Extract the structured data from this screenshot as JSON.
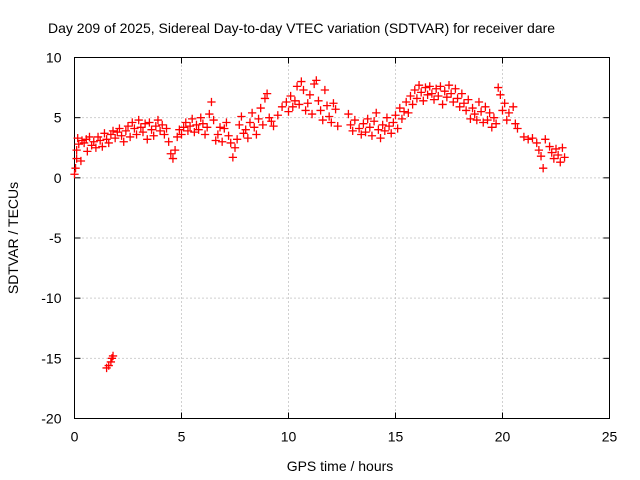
{
  "chart_data": {
    "type": "scatter",
    "title": "Day 209 of 2025, Sidereal Day-to-day VTEC variation (SDTVAR) for receiver dare",
    "xlabel": "GPS time / hours",
    "ylabel": "SDTVAR / TECUs",
    "xlim": [
      0,
      25
    ],
    "ylim": [
      -20,
      10
    ],
    "xticks": [
      0,
      5,
      10,
      15,
      20,
      25
    ],
    "yticks": [
      -20,
      -15,
      -10,
      -5,
      0,
      5,
      10
    ],
    "xtick_labels": [
      "0",
      "5",
      "10",
      "15",
      "20",
      "25"
    ],
    "ytick_labels": [
      "-20",
      "-15",
      "-10",
      "-5",
      "0",
      "5",
      "10"
    ],
    "grid": true,
    "marker": "+",
    "color": "#ff0000",
    "series": [
      {
        "name": "SDTVAR",
        "points": [
          [
            0.0,
            0.3
          ],
          [
            0.05,
            0.8
          ],
          [
            0.1,
            1.6
          ],
          [
            0.1,
            2.3
          ],
          [
            0.15,
            3.3
          ],
          [
            0.2,
            2.8
          ],
          [
            0.3,
            1.4
          ],
          [
            0.35,
            3.1
          ],
          [
            0.45,
            2.9
          ],
          [
            0.55,
            3.2
          ],
          [
            0.6,
            2.2
          ],
          [
            0.7,
            3.4
          ],
          [
            0.8,
            2.7
          ],
          [
            0.9,
            3.0
          ],
          [
            1.0,
            2.5
          ],
          [
            1.1,
            3.4
          ],
          [
            1.2,
            3.1
          ],
          [
            1.3,
            2.6
          ],
          [
            1.4,
            3.7
          ],
          [
            1.5,
            3.2
          ],
          [
            1.6,
            2.9
          ],
          [
            1.7,
            3.6
          ],
          [
            1.8,
            3.9
          ],
          [
            1.9,
            3.3
          ],
          [
            2.0,
            3.8
          ],
          [
            2.1,
            4.1
          ],
          [
            2.2,
            3.5
          ],
          [
            2.3,
            3.0
          ],
          [
            2.4,
            3.9
          ],
          [
            2.5,
            4.3
          ],
          [
            2.6,
            3.4
          ],
          [
            2.7,
            4.6
          ],
          [
            2.8,
            4.1
          ],
          [
            2.9,
            3.6
          ],
          [
            3.0,
            4.8
          ],
          [
            3.1,
            4.2
          ],
          [
            3.2,
            3.8
          ],
          [
            3.3,
            4.5
          ],
          [
            3.4,
            3.2
          ],
          [
            3.5,
            4.6
          ],
          [
            3.6,
            4.0
          ],
          [
            3.7,
            3.5
          ],
          [
            3.8,
            4.3
          ],
          [
            3.9,
            4.8
          ],
          [
            4.0,
            3.9
          ],
          [
            4.1,
            4.4
          ],
          [
            4.2,
            3.6
          ],
          [
            4.3,
            4.1
          ],
          [
            4.4,
            3.0
          ],
          [
            4.5,
            2.0
          ],
          [
            4.6,
            1.6
          ],
          [
            4.7,
            2.3
          ],
          [
            4.8,
            3.4
          ],
          [
            4.9,
            4.0
          ],
          [
            5.0,
            3.6
          ],
          [
            5.1,
            4.2
          ],
          [
            5.2,
            4.6
          ],
          [
            5.3,
            3.9
          ],
          [
            5.4,
            4.3
          ],
          [
            5.5,
            4.9
          ],
          [
            5.6,
            3.8
          ],
          [
            5.7,
            4.4
          ],
          [
            5.8,
            4.0
          ],
          [
            5.9,
            5.0
          ],
          [
            6.0,
            4.5
          ],
          [
            6.1,
            3.6
          ],
          [
            6.2,
            4.2
          ],
          [
            6.3,
            5.3
          ],
          [
            6.4,
            6.3
          ],
          [
            6.5,
            4.8
          ],
          [
            6.6,
            3.1
          ],
          [
            6.7,
            3.6
          ],
          [
            6.8,
            4.2
          ],
          [
            6.9,
            3.0
          ],
          [
            7.0,
            4.1
          ],
          [
            7.1,
            4.6
          ],
          [
            7.2,
            3.5
          ],
          [
            7.3,
            2.9
          ],
          [
            7.4,
            1.7
          ],
          [
            7.5,
            2.5
          ],
          [
            7.6,
            3.2
          ],
          [
            7.7,
            4.4
          ],
          [
            7.8,
            5.1
          ],
          [
            7.9,
            3.7
          ],
          [
            8.0,
            4.0
          ],
          [
            8.1,
            3.3
          ],
          [
            8.2,
            4.6
          ],
          [
            8.3,
            5.4
          ],
          [
            8.4,
            4.2
          ],
          [
            8.5,
            3.6
          ],
          [
            8.6,
            4.9
          ],
          [
            8.7,
            5.8
          ],
          [
            8.8,
            4.4
          ],
          [
            8.9,
            6.6
          ],
          [
            9.0,
            7.0
          ],
          [
            9.1,
            5.0
          ],
          [
            9.2,
            4.7
          ],
          [
            9.3,
            4.3
          ],
          [
            9.5,
            5.2
          ],
          [
            9.7,
            5.9
          ],
          [
            9.9,
            6.3
          ],
          [
            10.0,
            5.5
          ],
          [
            10.1,
            6.8
          ],
          [
            10.2,
            5.9
          ],
          [
            10.3,
            6.4
          ],
          [
            10.4,
            7.6
          ],
          [
            10.5,
            6.1
          ],
          [
            10.6,
            8.0
          ],
          [
            10.7,
            7.3
          ],
          [
            10.8,
            5.6
          ],
          [
            10.9,
            6.2
          ],
          [
            11.0,
            6.9
          ],
          [
            11.1,
            5.3
          ],
          [
            11.2,
            7.8
          ],
          [
            11.3,
            8.1
          ],
          [
            11.4,
            6.4
          ],
          [
            11.5,
            5.6
          ],
          [
            11.6,
            4.8
          ],
          [
            11.7,
            7.3
          ],
          [
            11.8,
            6.0
          ],
          [
            11.9,
            5.1
          ],
          [
            12.0,
            4.6
          ],
          [
            12.1,
            6.2
          ],
          [
            12.2,
            5.7
          ],
          [
            12.3,
            4.3
          ],
          [
            12.8,
            5.3
          ],
          [
            12.9,
            4.4
          ],
          [
            13.0,
            3.9
          ],
          [
            13.1,
            4.8
          ],
          [
            13.3,
            4.1
          ],
          [
            13.4,
            3.6
          ],
          [
            13.5,
            4.5
          ],
          [
            13.6,
            3.8
          ],
          [
            13.7,
            4.9
          ],
          [
            13.8,
            4.2
          ],
          [
            13.9,
            3.5
          ],
          [
            14.0,
            4.7
          ],
          [
            14.1,
            5.4
          ],
          [
            14.2,
            4.0
          ],
          [
            14.3,
            3.3
          ],
          [
            14.4,
            4.4
          ],
          [
            14.5,
            3.9
          ],
          [
            14.6,
            5.0
          ],
          [
            14.7,
            4.3
          ],
          [
            14.8,
            3.7
          ],
          [
            14.9,
            4.6
          ],
          [
            15.0,
            5.2
          ],
          [
            15.1,
            4.1
          ],
          [
            15.2,
            5.8
          ],
          [
            15.3,
            4.9
          ],
          [
            15.4,
            5.5
          ],
          [
            15.5,
            6.3
          ],
          [
            15.6,
            5.4
          ],
          [
            15.7,
            6.8
          ],
          [
            15.8,
            6.1
          ],
          [
            15.9,
            7.3
          ],
          [
            16.0,
            6.6
          ],
          [
            16.1,
            7.7
          ],
          [
            16.2,
            7.1
          ],
          [
            16.3,
            6.4
          ],
          [
            16.4,
            7.5
          ],
          [
            16.5,
            6.9
          ],
          [
            16.6,
            7.6
          ],
          [
            16.7,
            7.0
          ],
          [
            16.8,
            6.5
          ],
          [
            16.9,
            7.4
          ],
          [
            17.0,
            6.8
          ],
          [
            17.1,
            7.6
          ],
          [
            17.2,
            6.1
          ],
          [
            17.3,
            7.2
          ],
          [
            17.4,
            6.7
          ],
          [
            17.5,
            7.7
          ],
          [
            17.6,
            7.0
          ],
          [
            17.7,
            6.3
          ],
          [
            17.8,
            7.4
          ],
          [
            17.9,
            6.6
          ],
          [
            18.0,
            5.9
          ],
          [
            18.1,
            7.0
          ],
          [
            18.2,
            6.2
          ],
          [
            18.3,
            5.6
          ],
          [
            18.4,
            6.5
          ],
          [
            18.5,
            4.9
          ],
          [
            18.6,
            5.8
          ],
          [
            18.7,
            5.3
          ],
          [
            18.8,
            4.8
          ],
          [
            18.9,
            6.3
          ],
          [
            19.0,
            5.5
          ],
          [
            19.1,
            4.6
          ],
          [
            19.2,
            5.9
          ],
          [
            19.3,
            4.8
          ],
          [
            19.4,
            5.4
          ],
          [
            19.5,
            4.2
          ],
          [
            19.6,
            5.0
          ],
          [
            19.7,
            4.5
          ],
          [
            19.8,
            7.5
          ],
          [
            19.9,
            6.9
          ],
          [
            20.0,
            5.6
          ],
          [
            20.1,
            6.2
          ],
          [
            20.2,
            4.8
          ],
          [
            20.3,
            5.4
          ],
          [
            20.5,
            5.9
          ],
          [
            20.6,
            4.5
          ],
          [
            20.7,
            4.1
          ],
          [
            21.0,
            3.4
          ],
          [
            21.2,
            3.2
          ],
          [
            21.4,
            3.3
          ],
          [
            21.6,
            2.9
          ],
          [
            21.7,
            2.3
          ],
          [
            21.8,
            1.8
          ],
          [
            21.9,
            0.8
          ],
          [
            22.0,
            3.2
          ],
          [
            22.2,
            2.6
          ],
          [
            22.3,
            2.1
          ],
          [
            22.4,
            1.6
          ],
          [
            22.5,
            2.4
          ],
          [
            22.6,
            1.9
          ],
          [
            22.7,
            1.3
          ],
          [
            22.8,
            2.5
          ],
          [
            22.9,
            1.7
          ],
          [
            1.5,
            -15.8
          ],
          [
            1.6,
            -15.6
          ],
          [
            1.7,
            -15.3
          ],
          [
            1.75,
            -15.0
          ],
          [
            1.8,
            -14.8
          ]
        ]
      }
    ]
  }
}
